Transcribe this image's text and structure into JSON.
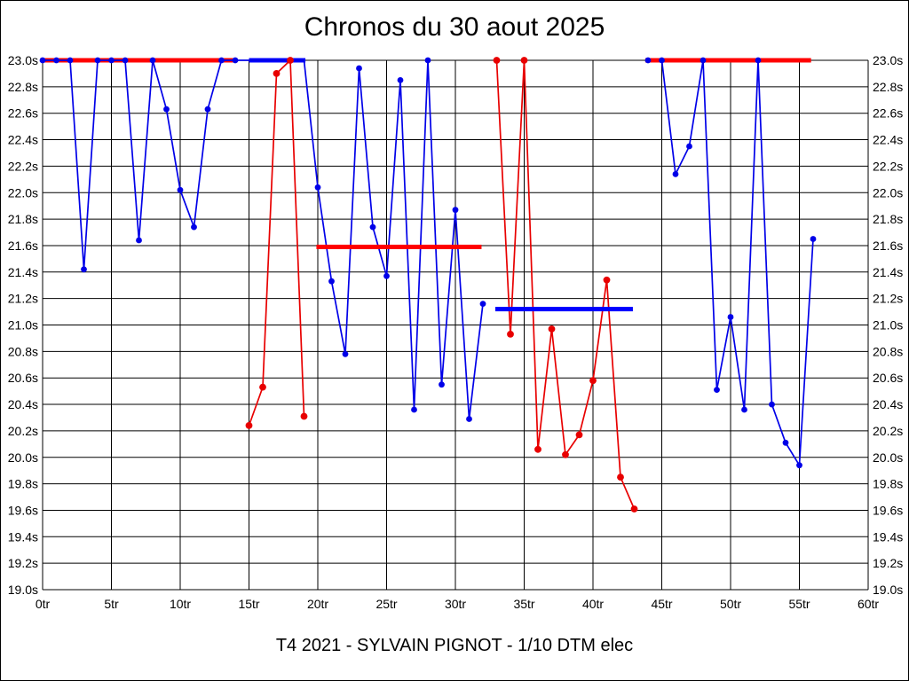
{
  "chart_data": {
    "type": "line",
    "title": "Chronos du 30 aout 2025",
    "footer": "T4 2021 - SYLVAIN PIGNOT - 1/10 DTM elec",
    "x_unit": "tr",
    "y_unit": "s",
    "xlim": [
      0,
      60
    ],
    "ylim": [
      19.0,
      23.0
    ],
    "grid": true,
    "legend": "none",
    "x_ticks": {
      "values": [
        0,
        5,
        10,
        15,
        20,
        25,
        30,
        35,
        40,
        45,
        50,
        55,
        60
      ],
      "labels": [
        "0tr",
        "5tr",
        "10tr",
        "15tr",
        "20tr",
        "25tr",
        "30tr",
        "35tr",
        "40tr",
        "45tr",
        "50tr",
        "55tr",
        "60tr"
      ]
    },
    "y_ticks": {
      "values": [
        23.0,
        22.8,
        22.6,
        22.4,
        22.2,
        22.0,
        21.8,
        21.6,
        21.4,
        21.2,
        21.0,
        20.8,
        20.6,
        20.4,
        20.2,
        20.0,
        19.8,
        19.6,
        19.4,
        19.2,
        19.0
      ],
      "labels": [
        "23.0s",
        "22.8s",
        "22.6s",
        "22.4s",
        "22.2s",
        "22.0s",
        "21.8s",
        "21.6s",
        "21.4s",
        "21.2s",
        "21.0s",
        "20.8s",
        "20.6s",
        "20.4s",
        "20.2s",
        "20.0s",
        "19.8s",
        "19.6s",
        "19.4s",
        "19.2s",
        "19.0s"
      ]
    },
    "series": [
      {
        "name": "blue-series",
        "color": "#0000e8",
        "marker_radius": 3.4,
        "segments": [
          {
            "points": [
              [
                0,
                23.0
              ],
              [
                1,
                23.0
              ],
              [
                2,
                23.0
              ],
              [
                3,
                21.42
              ],
              [
                4,
                23.0
              ],
              [
                5,
                23.0
              ],
              [
                6,
                23.0
              ],
              [
                7,
                21.64
              ],
              [
                8,
                23.0
              ],
              [
                9,
                22.63
              ],
              [
                10,
                22.02
              ],
              [
                11,
                21.74
              ],
              [
                12,
                22.63
              ],
              [
                13,
                23.0
              ],
              [
                14,
                23.0
              ],
              [
                19,
                23.0,
                0
              ],
              [
                20,
                22.04
              ],
              [
                21,
                21.33
              ],
              [
                22,
                20.78
              ],
              [
                23,
                22.94
              ],
              [
                24,
                21.74
              ],
              [
                25,
                21.37
              ],
              [
                26,
                22.85
              ],
              [
                27,
                20.36
              ],
              [
                28,
                23.0
              ],
              [
                29,
                20.55
              ],
              [
                30,
                21.87
              ],
              [
                31,
                20.29
              ],
              [
                32,
                21.16
              ]
            ]
          },
          {
            "points": [
              [
                44,
                23.0
              ],
              [
                45,
                23.0
              ],
              [
                46,
                22.14
              ],
              [
                47,
                22.35
              ],
              [
                48,
                23.0
              ],
              [
                49,
                20.51
              ],
              [
                50,
                21.06
              ],
              [
                51,
                20.36
              ],
              [
                52,
                23.0
              ],
              [
                53,
                20.4
              ],
              [
                54,
                20.11
              ],
              [
                55,
                19.94
              ],
              [
                56,
                21.65
              ]
            ]
          }
        ]
      },
      {
        "name": "red-series",
        "color": "#e80000",
        "marker_radius": 3.9,
        "segments": [
          {
            "points": [
              [
                15,
                20.24
              ],
              [
                16,
                20.53
              ],
              [
                17,
                22.9
              ],
              [
                18,
                23.0
              ],
              [
                19,
                20.31
              ]
            ]
          },
          {
            "points": [
              [
                33,
                23.0
              ],
              [
                34,
                20.93
              ],
              [
                35,
                23.0
              ],
              [
                36,
                20.06
              ],
              [
                37,
                20.97
              ],
              [
                38,
                20.02
              ],
              [
                39,
                20.17
              ],
              [
                40,
                20.58
              ],
              [
                41,
                21.34
              ],
              [
                42,
                19.85
              ],
              [
                43,
                19.61
              ]
            ]
          }
        ]
      }
    ],
    "average_bars": [
      {
        "name": "red-average-bar-1",
        "color": "#ff0000",
        "value": 23.0,
        "from": -0.1,
        "to": 14.15,
        "layer": "under"
      },
      {
        "name": "blue-average-bar-1",
        "color": "#0000ff",
        "value": 23.0,
        "from": 15.0,
        "to": 19.1,
        "layer": "under"
      },
      {
        "name": "red-average-bar-2",
        "color": "#ff0000",
        "value": 21.59,
        "from": 19.9,
        "to": 31.9,
        "layer": "over"
      },
      {
        "name": "blue-average-bar-2",
        "color": "#0000ff",
        "value": 21.12,
        "from": 32.9,
        "to": 42.9,
        "layer": "over"
      },
      {
        "name": "red-average-bar-3",
        "color": "#ff0000",
        "value": 23.0,
        "from": 43.8,
        "to": 55.85,
        "layer": "over"
      }
    ]
  }
}
